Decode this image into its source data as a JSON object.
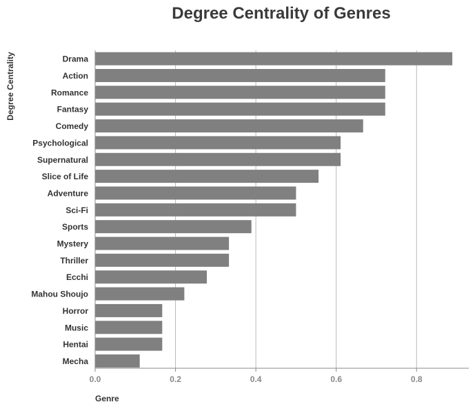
{
  "chart_data": {
    "type": "bar",
    "orientation": "horizontal",
    "title": "Degree Centrality of Genres",
    "xlabel": "Genre",
    "ylabel": "Degree Centrality",
    "xlim": [
      0,
      0.93
    ],
    "x_ticks": [
      "0.0",
      "0.2",
      "0.4",
      "0.6",
      "0.8"
    ],
    "x_tick_values": [
      0,
      0.2,
      0.4,
      0.6,
      0.8
    ],
    "grid": "vertical",
    "categories": [
      "Drama",
      "Action",
      "Romance",
      "Fantasy",
      "Comedy",
      "Psychological",
      "Supernatural",
      "Slice of Life",
      "Adventure",
      "Sci-Fi",
      "Sports",
      "Mystery",
      "Thriller",
      "Ecchi",
      "Mahou Shoujo",
      "Horror",
      "Music",
      "Hentai",
      "Mecha"
    ],
    "values": [
      0.889,
      0.722,
      0.722,
      0.722,
      0.667,
      0.611,
      0.611,
      0.556,
      0.5,
      0.5,
      0.389,
      0.333,
      0.333,
      0.278,
      0.222,
      0.167,
      0.167,
      0.167,
      0.111
    ],
    "bar_color": "#808080",
    "grid_color": "#b8b8b8",
    "axis_color": "#8a8a8a"
  }
}
